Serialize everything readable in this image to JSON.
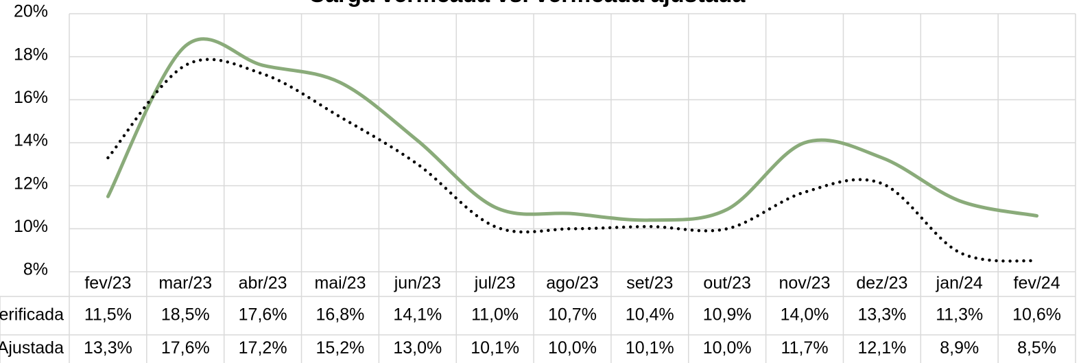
{
  "chart_data": {
    "type": "line",
    "title": "Carga verificada vs. verificada ajustada",
    "categories": [
      "fev/23",
      "mar/23",
      "abr/23",
      "mai/23",
      "jun/23",
      "jul/23",
      "ago/23",
      "set/23",
      "out/23",
      "nov/23",
      "dez/23",
      "jan/24",
      "fev/24"
    ],
    "series": [
      {
        "name": "Verificada",
        "color": "#8aab7a",
        "style": "solid",
        "values": [
          11.5,
          18.5,
          17.6,
          16.8,
          14.1,
          11.0,
          10.7,
          10.4,
          10.9,
          14.0,
          13.3,
          11.3,
          10.6
        ],
        "value_labels": [
          "11,5%",
          "18,5%",
          "17,6%",
          "16,8%",
          "14,1%",
          "11,0%",
          "10,7%",
          "10,4%",
          "10,9%",
          "14,0%",
          "13,3%",
          "11,3%",
          "10,6%"
        ]
      },
      {
        "name": "Ajustada",
        "color": "#000000",
        "style": "dotted",
        "values": [
          13.3,
          17.6,
          17.2,
          15.2,
          13.0,
          10.1,
          10.0,
          10.1,
          10.0,
          11.7,
          12.1,
          8.9,
          8.5
        ],
        "value_labels": [
          "13,3%",
          "17,6%",
          "17,2%",
          "15,2%",
          "13,0%",
          "10,1%",
          "10,0%",
          "10,1%",
          "10,0%",
          "11,7%",
          "12,1%",
          "8,9%",
          "8,5%"
        ]
      }
    ],
    "ylim": [
      8,
      20
    ],
    "yticks": [
      {
        "value": 8,
        "label": "8%"
      },
      {
        "value": 10,
        "label": "10%"
      },
      {
        "value": 12,
        "label": "12%"
      },
      {
        "value": 14,
        "label": "14%"
      },
      {
        "value": 16,
        "label": "16%"
      },
      {
        "value": 18,
        "label": "18%"
      },
      {
        "value": 20,
        "label": "20%"
      }
    ],
    "grid": true,
    "smooth": true,
    "data_table": true
  }
}
